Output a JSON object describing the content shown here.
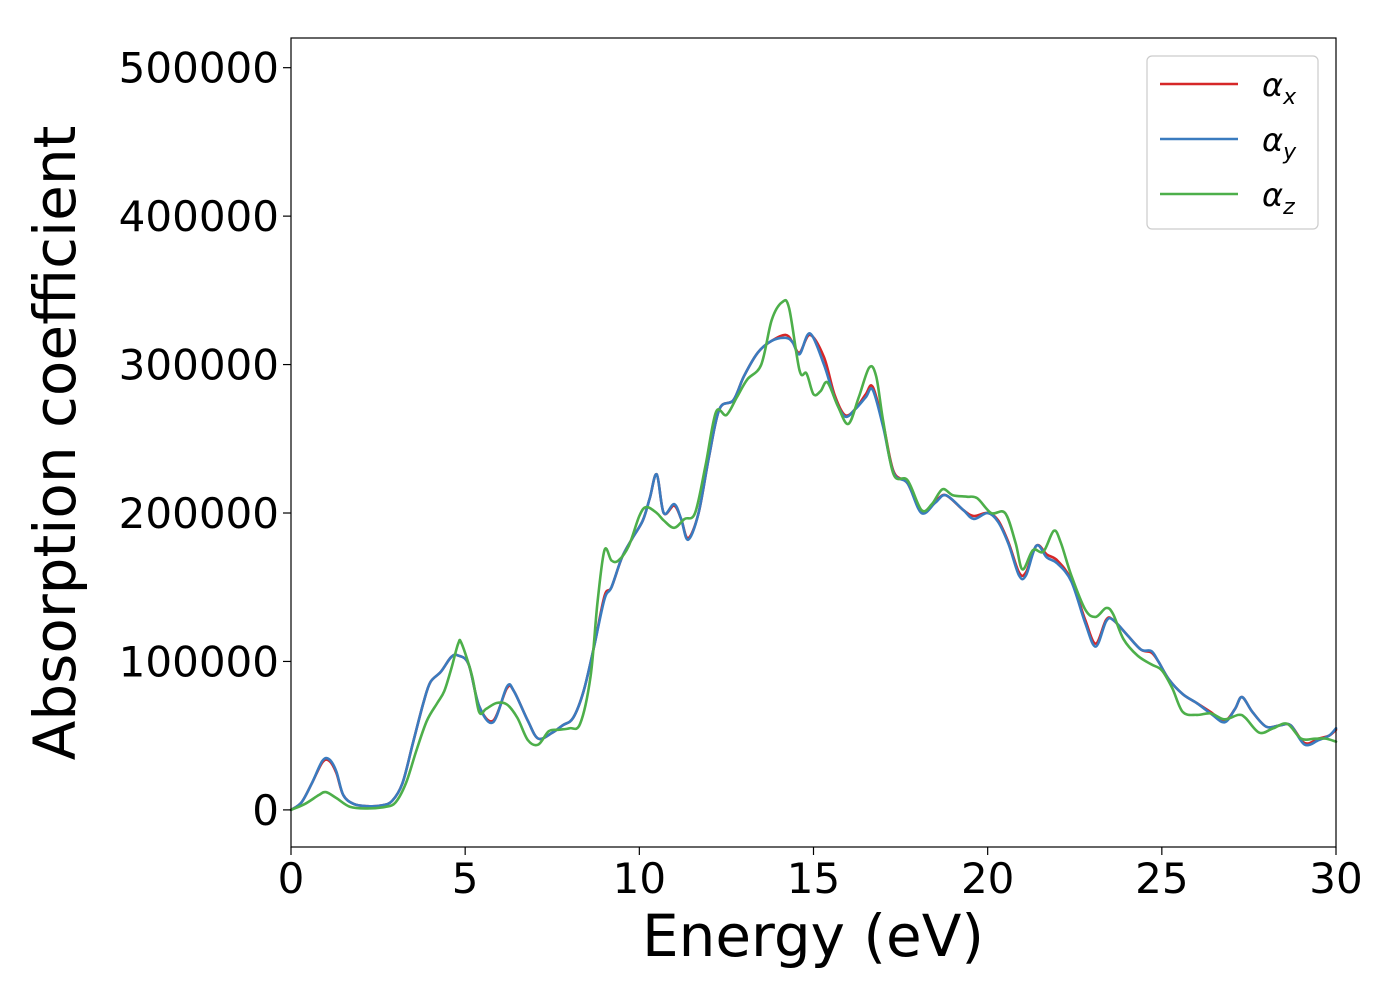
{
  "chart_data": {
    "type": "line",
    "title": "",
    "xlabel": "Energy (eV)",
    "ylabel": "Absorption coefficient",
    "xlim": [
      0,
      30
    ],
    "ylim": [
      -25000,
      520000
    ],
    "xticks": [
      0,
      5,
      10,
      15,
      20,
      25,
      30
    ],
    "yticks": [
      0,
      100000,
      200000,
      300000,
      400000,
      500000
    ],
    "xtick_labels": [
      "0",
      "5",
      "10",
      "15",
      "20",
      "25",
      "30"
    ],
    "ytick_labels": [
      "0",
      "100000",
      "200000",
      "300000",
      "400000",
      "500000"
    ],
    "grid": false,
    "legend_position": "top-right",
    "series": [
      {
        "name": "α",
        "subscript": "x",
        "color": "#d62728",
        "points": [
          [
            0,
            0
          ],
          [
            0.3,
            5000
          ],
          [
            0.6,
            18000
          ],
          [
            0.9,
            32000
          ],
          [
            1.1,
            33000
          ],
          [
            1.3,
            25000
          ],
          [
            1.5,
            10000
          ],
          [
            1.8,
            4000
          ],
          [
            2.2,
            2500
          ],
          [
            2.6,
            3000
          ],
          [
            2.9,
            6000
          ],
          [
            3.2,
            18000
          ],
          [
            3.5,
            45000
          ],
          [
            3.8,
            72000
          ],
          [
            4.0,
            86000
          ],
          [
            4.3,
            93000
          ],
          [
            4.6,
            103000
          ],
          [
            4.8,
            104000
          ],
          [
            5.1,
            98000
          ],
          [
            5.4,
            70000
          ],
          [
            5.8,
            60000
          ],
          [
            6.2,
            82000
          ],
          [
            6.4,
            80000
          ],
          [
            6.8,
            60000
          ],
          [
            7.1,
            48000
          ],
          [
            7.5,
            52000
          ],
          [
            7.8,
            57000
          ],
          [
            8.1,
            62000
          ],
          [
            8.4,
            80000
          ],
          [
            8.7,
            110000
          ],
          [
            9.0,
            144000
          ],
          [
            9.2,
            150000
          ],
          [
            9.5,
            170000
          ],
          [
            9.8,
            183000
          ],
          [
            10.1,
            195000
          ],
          [
            10.3,
            210000
          ],
          [
            10.5,
            226000
          ],
          [
            10.7,
            200000
          ],
          [
            11.0,
            205000
          ],
          [
            11.2,
            196000
          ],
          [
            11.4,
            183000
          ],
          [
            11.7,
            200000
          ],
          [
            12.0,
            238000
          ],
          [
            12.3,
            270000
          ],
          [
            12.7,
            276000
          ],
          [
            13.0,
            292000
          ],
          [
            13.4,
            308000
          ],
          [
            13.8,
            316000
          ],
          [
            14.2,
            320000
          ],
          [
            14.4,
            315000
          ],
          [
            14.6,
            308000
          ],
          [
            14.9,
            320000
          ],
          [
            15.3,
            305000
          ],
          [
            15.6,
            280000
          ],
          [
            15.9,
            266000
          ],
          [
            16.2,
            270000
          ],
          [
            16.5,
            280000
          ],
          [
            16.7,
            285000
          ],
          [
            17.0,
            260000
          ],
          [
            17.3,
            228000
          ],
          [
            17.7,
            220000
          ],
          [
            18.1,
            201000
          ],
          [
            18.5,
            208000
          ],
          [
            18.8,
            212000
          ],
          [
            19.3,
            202000
          ],
          [
            19.6,
            198000
          ],
          [
            20.0,
            200000
          ],
          [
            20.3,
            195000
          ],
          [
            20.6,
            180000
          ],
          [
            20.9,
            160000
          ],
          [
            21.1,
            160000
          ],
          [
            21.4,
            178000
          ],
          [
            21.7,
            172000
          ],
          [
            22.0,
            168000
          ],
          [
            22.4,
            155000
          ],
          [
            22.8,
            128000
          ],
          [
            23.1,
            112000
          ],
          [
            23.4,
            128000
          ],
          [
            23.6,
            128000
          ],
          [
            24.0,
            118000
          ],
          [
            24.4,
            108000
          ],
          [
            24.7,
            106000
          ],
          [
            24.9,
            100000
          ],
          [
            25.2,
            88000
          ],
          [
            25.6,
            78000
          ],
          [
            26.0,
            72000
          ],
          [
            26.4,
            66000
          ],
          [
            26.8,
            60000
          ],
          [
            27.1,
            68000
          ],
          [
            27.3,
            76000
          ],
          [
            27.6,
            66000
          ],
          [
            28.0,
            56000
          ],
          [
            28.4,
            57000
          ],
          [
            28.7,
            57000
          ],
          [
            29.1,
            45000
          ],
          [
            29.5,
            48000
          ],
          [
            29.8,
            50000
          ],
          [
            30.0,
            54000
          ]
        ]
      },
      {
        "name": "α",
        "subscript": "y",
        "color": "#3a7bbf",
        "points": [
          [
            0,
            0
          ],
          [
            0.3,
            5000
          ],
          [
            0.6,
            18000
          ],
          [
            0.9,
            33000
          ],
          [
            1.1,
            34000
          ],
          [
            1.3,
            26000
          ],
          [
            1.5,
            10000
          ],
          [
            1.8,
            4000
          ],
          [
            2.2,
            2500
          ],
          [
            2.6,
            3000
          ],
          [
            2.9,
            6000
          ],
          [
            3.2,
            18000
          ],
          [
            3.5,
            45000
          ],
          [
            3.8,
            72000
          ],
          [
            4.0,
            86000
          ],
          [
            4.3,
            93000
          ],
          [
            4.6,
            103000
          ],
          [
            4.8,
            104000
          ],
          [
            5.1,
            98000
          ],
          [
            5.4,
            70000
          ],
          [
            5.8,
            59000
          ],
          [
            6.2,
            83000
          ],
          [
            6.4,
            80000
          ],
          [
            6.8,
            60000
          ],
          [
            7.1,
            48000
          ],
          [
            7.5,
            52000
          ],
          [
            7.8,
            57000
          ],
          [
            8.1,
            62000
          ],
          [
            8.4,
            80000
          ],
          [
            8.7,
            110000
          ],
          [
            9.0,
            142000
          ],
          [
            9.2,
            150000
          ],
          [
            9.5,
            170000
          ],
          [
            9.8,
            183000
          ],
          [
            10.1,
            195000
          ],
          [
            10.3,
            210000
          ],
          [
            10.5,
            226000
          ],
          [
            10.7,
            200000
          ],
          [
            11.0,
            206000
          ],
          [
            11.2,
            196000
          ],
          [
            11.4,
            182000
          ],
          [
            11.7,
            200000
          ],
          [
            12.0,
            238000
          ],
          [
            12.3,
            270000
          ],
          [
            12.7,
            276000
          ],
          [
            13.0,
            292000
          ],
          [
            13.4,
            308000
          ],
          [
            13.8,
            316000
          ],
          [
            14.2,
            318000
          ],
          [
            14.4,
            315000
          ],
          [
            14.6,
            307000
          ],
          [
            14.9,
            321000
          ],
          [
            15.3,
            300000
          ],
          [
            15.6,
            278000
          ],
          [
            15.9,
            265000
          ],
          [
            16.2,
            270000
          ],
          [
            16.5,
            278000
          ],
          [
            16.7,
            283000
          ],
          [
            17.0,
            258000
          ],
          [
            17.3,
            227000
          ],
          [
            17.7,
            220000
          ],
          [
            18.1,
            200000
          ],
          [
            18.5,
            207000
          ],
          [
            18.8,
            212000
          ],
          [
            19.3,
            202000
          ],
          [
            19.6,
            196000
          ],
          [
            20.0,
            200000
          ],
          [
            20.3,
            194000
          ],
          [
            20.6,
            179000
          ],
          [
            20.9,
            158000
          ],
          [
            21.1,
            158000
          ],
          [
            21.4,
            178000
          ],
          [
            21.7,
            170000
          ],
          [
            22.0,
            166000
          ],
          [
            22.4,
            154000
          ],
          [
            22.8,
            126000
          ],
          [
            23.1,
            110000
          ],
          [
            23.4,
            127000
          ],
          [
            23.6,
            128000
          ],
          [
            24.0,
            118000
          ],
          [
            24.4,
            108000
          ],
          [
            24.7,
            107000
          ],
          [
            24.9,
            100000
          ],
          [
            25.2,
            88000
          ],
          [
            25.6,
            78000
          ],
          [
            26.0,
            72000
          ],
          [
            26.4,
            65000
          ],
          [
            26.8,
            59000
          ],
          [
            27.1,
            68000
          ],
          [
            27.3,
            76000
          ],
          [
            27.6,
            66000
          ],
          [
            28.0,
            56000
          ],
          [
            28.4,
            57000
          ],
          [
            28.7,
            57000
          ],
          [
            29.1,
            44000
          ],
          [
            29.5,
            47000
          ],
          [
            29.8,
            50000
          ],
          [
            30.0,
            55000
          ]
        ]
      },
      {
        "name": "α",
        "subscript": "z",
        "color": "#4daf4a",
        "points": [
          [
            0,
            0
          ],
          [
            0.4,
            4000
          ],
          [
            0.8,
            10000
          ],
          [
            1.0,
            12000
          ],
          [
            1.3,
            8000
          ],
          [
            1.7,
            2000
          ],
          [
            2.2,
            1000
          ],
          [
            2.7,
            2000
          ],
          [
            3.0,
            5000
          ],
          [
            3.3,
            18000
          ],
          [
            3.6,
            40000
          ],
          [
            3.9,
            60000
          ],
          [
            4.2,
            72000
          ],
          [
            4.4,
            80000
          ],
          [
            4.6,
            95000
          ],
          [
            4.8,
            112000
          ],
          [
            4.9,
            112000
          ],
          [
            5.2,
            90000
          ],
          [
            5.4,
            66000
          ],
          [
            5.6,
            68000
          ],
          [
            5.9,
            72000
          ],
          [
            6.2,
            71000
          ],
          [
            6.5,
            62000
          ],
          [
            6.8,
            47000
          ],
          [
            7.1,
            44000
          ],
          [
            7.4,
            53000
          ],
          [
            7.7,
            54000
          ],
          [
            8.0,
            55000
          ],
          [
            8.3,
            58000
          ],
          [
            8.6,
            90000
          ],
          [
            8.8,
            140000
          ],
          [
            9.0,
            175000
          ],
          [
            9.2,
            168000
          ],
          [
            9.4,
            168000
          ],
          [
            9.7,
            178000
          ],
          [
            10.0,
            198000
          ],
          [
            10.2,
            204000
          ],
          [
            10.5,
            200000
          ],
          [
            10.7,
            195000
          ],
          [
            11.0,
            190000
          ],
          [
            11.3,
            196000
          ],
          [
            11.6,
            200000
          ],
          [
            11.9,
            232000
          ],
          [
            12.2,
            268000
          ],
          [
            12.5,
            266000
          ],
          [
            12.8,
            278000
          ],
          [
            13.1,
            290000
          ],
          [
            13.5,
            300000
          ],
          [
            13.8,
            330000
          ],
          [
            14.1,
            342000
          ],
          [
            14.3,
            338000
          ],
          [
            14.6,
            296000
          ],
          [
            14.8,
            294000
          ],
          [
            15.0,
            280000
          ],
          [
            15.2,
            282000
          ],
          [
            15.4,
            288000
          ],
          [
            15.7,
            272000
          ],
          [
            16.0,
            260000
          ],
          [
            16.3,
            278000
          ],
          [
            16.6,
            298000
          ],
          [
            16.8,
            292000
          ],
          [
            17.0,
            262000
          ],
          [
            17.3,
            226000
          ],
          [
            17.7,
            222000
          ],
          [
            18.1,
            202000
          ],
          [
            18.4,
            206000
          ],
          [
            18.7,
            216000
          ],
          [
            19.0,
            212000
          ],
          [
            19.4,
            211000
          ],
          [
            19.7,
            210000
          ],
          [
            20.1,
            200000
          ],
          [
            20.5,
            200000
          ],
          [
            20.8,
            180000
          ],
          [
            21.0,
            162000
          ],
          [
            21.3,
            175000
          ],
          [
            21.6,
            174000
          ],
          [
            21.9,
            188000
          ],
          [
            22.1,
            180000
          ],
          [
            22.4,
            158000
          ],
          [
            22.8,
            135000
          ],
          [
            23.1,
            130000
          ],
          [
            23.4,
            136000
          ],
          [
            23.6,
            132000
          ],
          [
            23.9,
            115000
          ],
          [
            24.3,
            104000
          ],
          [
            24.7,
            98000
          ],
          [
            25.0,
            94000
          ],
          [
            25.3,
            82000
          ],
          [
            25.6,
            66000
          ],
          [
            26.0,
            64000
          ],
          [
            26.4,
            65000
          ],
          [
            26.8,
            61000
          ],
          [
            27.2,
            64000
          ],
          [
            27.4,
            62000
          ],
          [
            27.8,
            52000
          ],
          [
            28.2,
            55000
          ],
          [
            28.6,
            58000
          ],
          [
            29.0,
            48000
          ],
          [
            29.4,
            48000
          ],
          [
            29.7,
            48000
          ],
          [
            30.0,
            46000
          ]
        ]
      }
    ]
  }
}
